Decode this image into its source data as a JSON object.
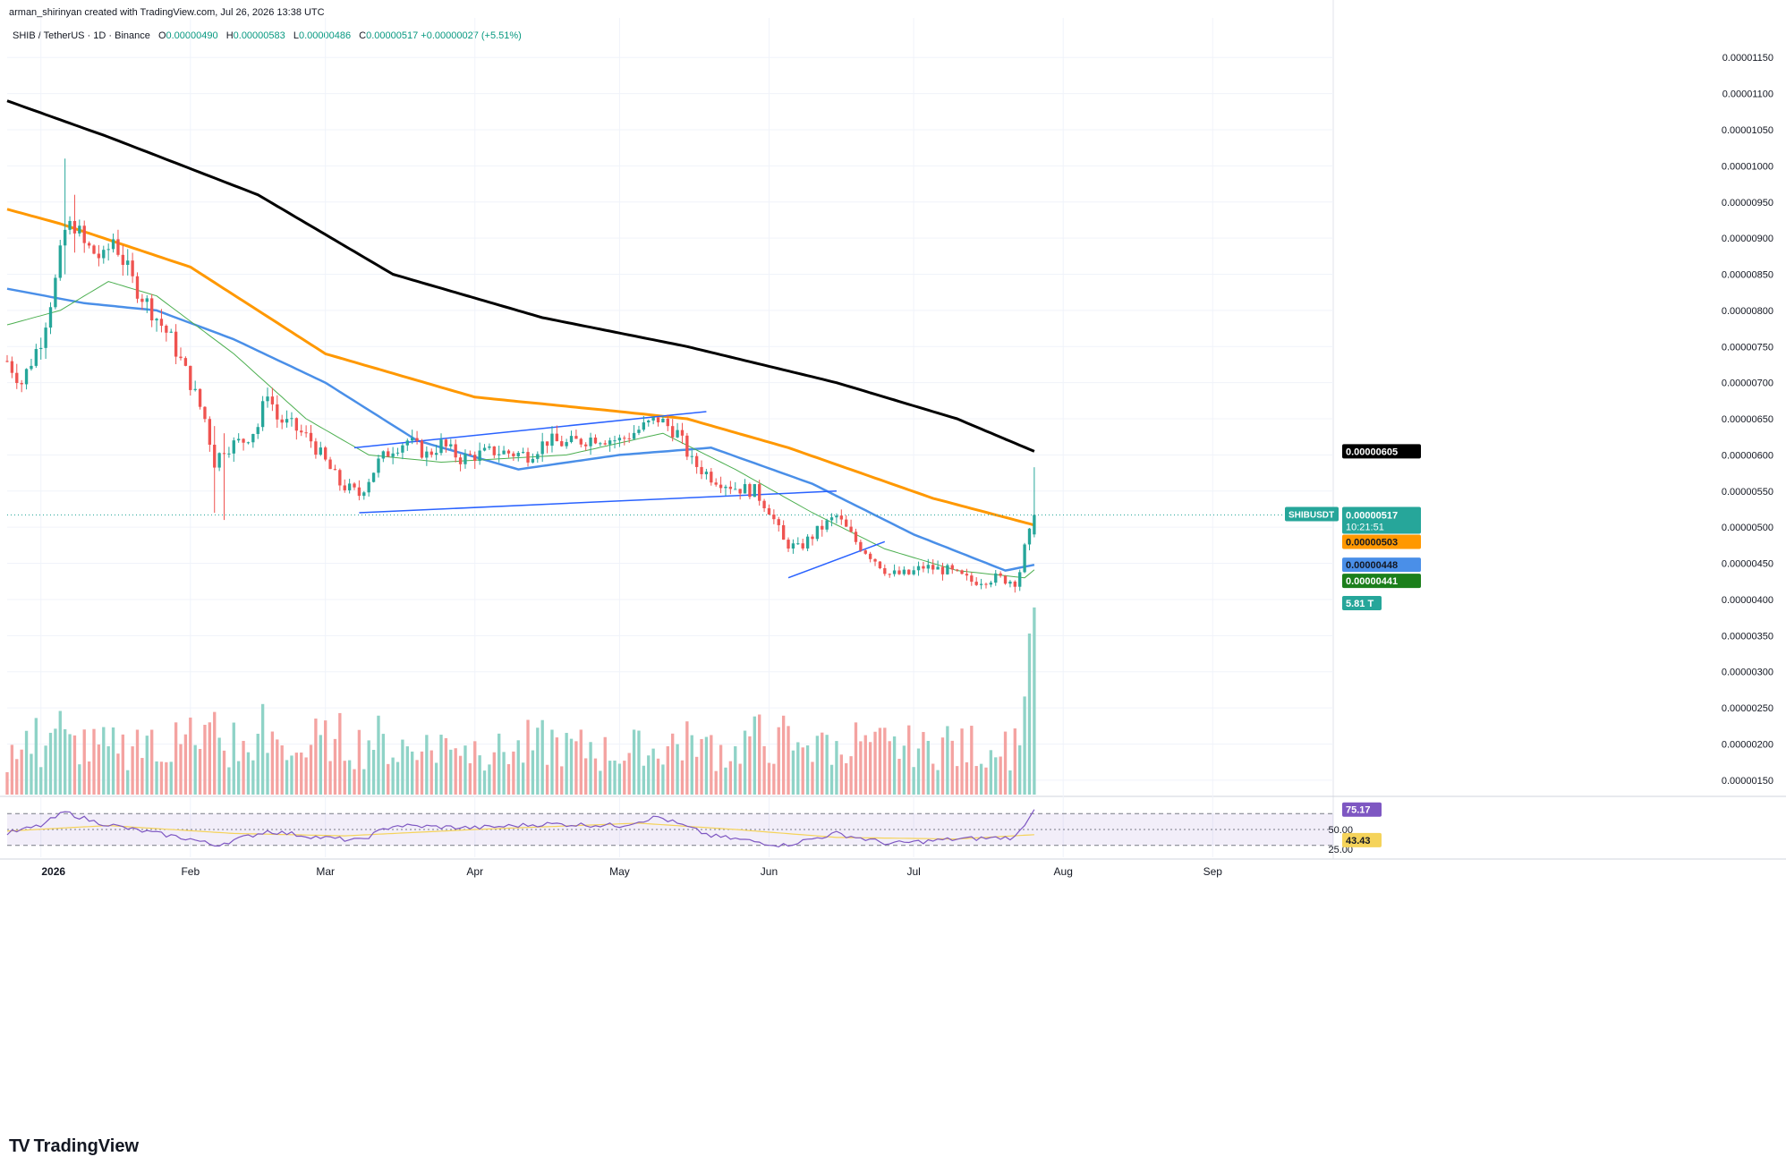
{
  "header": {
    "credit": "arman_shirinyan created with TradingView.com, Jul 26, 2026 13:38 UTC",
    "symbol": "SHIB / TetherUS · 1D · Binance",
    "ohlc": {
      "o_label": "O",
      "o": "0.00000490",
      "h_label": "H",
      "h": "0.00000583",
      "l_label": "L",
      "l": "0.00000486",
      "c_label": "C",
      "c": "0.00000517",
      "change": "+0.00000027 (+5.51%)"
    }
  },
  "branding": {
    "logo_text": "TradingView",
    "logo_mark": "TV"
  },
  "colors": {
    "up": "#26a69a",
    "down": "#ef5350",
    "vol_up": "#8fd3c7",
    "vol_down": "#f4a3a1",
    "ma200": "#000000",
    "ma100": "#ff9800",
    "ma50": "#4a8fe8",
    "ma20": "#4caf50",
    "rsi": "#7e57c2",
    "rsi_ma": "#f5d35a",
    "trend": "#2962ff"
  },
  "chart_data": {
    "type": "candlestick",
    "symbol_label": "SHIBUSDT",
    "y_axis": {
      "ticks": [
        1.15e-05,
        1.1e-05,
        1.05e-05,
        1e-05,
        9.5e-06,
        9e-06,
        8.5e-06,
        8e-06,
        7.5e-06,
        7e-06,
        6.5e-06,
        6e-06,
        5.5e-06,
        5e-06,
        4.5e-06,
        4e-06,
        3.5e-06,
        3e-06,
        2.5e-06,
        2e-06,
        1.5e-06
      ],
      "tick_labels": [
        "0.00001150",
        "0.00001100",
        "0.00001050",
        "0.00001000",
        "0.00000950",
        "0.00000900",
        "0.00000850",
        "0.00000800",
        "0.00000750",
        "0.00000700",
        "0.00000650",
        "0.00000600",
        "0.00000550",
        "0.00000500",
        "0.00000450",
        "0.00000400",
        "0.00000350",
        "0.00000300",
        "0.00000250",
        "0.00000200",
        "0.00000150"
      ],
      "range": [
        1.3e-06,
        1.18e-05
      ]
    },
    "x_axis": {
      "labels": [
        {
          "label": "2026",
          "date": "2026-01-01"
        },
        {
          "label": "Feb",
          "date": "2026-02-01"
        },
        {
          "label": "Mar",
          "date": "2026-03-01"
        },
        {
          "label": "Apr",
          "date": "2026-04-01"
        },
        {
          "label": "May",
          "date": "2026-05-01"
        },
        {
          "label": "Jun",
          "date": "2026-06-01"
        },
        {
          "label": "Jul",
          "date": "2026-07-01"
        },
        {
          "label": "Aug",
          "date": "2026-08-01"
        },
        {
          "label": "Sep",
          "date": "2026-09-01"
        }
      ],
      "range": [
        "2025-12-25",
        "2026-09-26"
      ]
    },
    "price_anchors": [
      [
        "2025-12-25",
        7.3e-06
      ],
      [
        "2025-12-28",
        7e-06
      ],
      [
        "2026-01-01",
        7.6e-06
      ],
      [
        "2026-01-04",
        8.4e-06
      ],
      [
        "2026-01-06",
        9.1e-06
      ],
      [
        "2026-01-08",
        9.2e-06
      ],
      [
        "2026-01-10",
        8.9e-06
      ],
      [
        "2026-01-14",
        8.7e-06
      ],
      [
        "2026-01-16",
        9e-06
      ],
      [
        "2026-01-20",
        8.4e-06
      ],
      [
        "2026-01-24",
        8e-06
      ],
      [
        "2026-01-28",
        7.6e-06
      ],
      [
        "2026-02-01",
        7e-06
      ],
      [
        "2026-02-04",
        6.5e-06
      ],
      [
        "2026-02-06",
        5.9e-06
      ],
      [
        "2026-02-08",
        6.1e-06
      ],
      [
        "2026-02-12",
        6.2e-06
      ],
      [
        "2026-02-15",
        6.4e-06
      ],
      [
        "2026-02-17",
        6.9e-06
      ],
      [
        "2026-02-19",
        6.5e-06
      ],
      [
        "2026-02-22",
        6.4e-06
      ],
      [
        "2026-02-26",
        6.2e-06
      ],
      [
        "2026-03-01",
        5.9e-06
      ],
      [
        "2026-03-04",
        5.6e-06
      ],
      [
        "2026-03-08",
        5.45e-06
      ],
      [
        "2026-03-12",
        5.9e-06
      ],
      [
        "2026-03-15",
        6.1e-06
      ],
      [
        "2026-03-18",
        6.2e-06
      ],
      [
        "2026-03-22",
        6e-06
      ],
      [
        "2026-03-25",
        6.15e-06
      ],
      [
        "2026-03-29",
        5.95e-06
      ],
      [
        "2026-04-05",
        6.05e-06
      ],
      [
        "2026-04-12",
        6e-06
      ],
      [
        "2026-04-16",
        6.2e-06
      ],
      [
        "2026-04-20",
        6.15e-06
      ],
      [
        "2026-04-26",
        6.25e-06
      ],
      [
        "2026-05-01",
        6.2e-06
      ],
      [
        "2026-05-05",
        6.35e-06
      ],
      [
        "2026-05-09",
        6.5e-06
      ],
      [
        "2026-05-13",
        6.3e-06
      ],
      [
        "2026-05-16",
        5.9e-06
      ],
      [
        "2026-05-20",
        5.7e-06
      ],
      [
        "2026-05-25",
        5.55e-06
      ],
      [
        "2026-05-29",
        5.5e-06
      ],
      [
        "2026-06-01",
        5.25e-06
      ],
      [
        "2026-06-04",
        4.8e-06
      ],
      [
        "2026-06-07",
        4.7e-06
      ],
      [
        "2026-06-12",
        5e-06
      ],
      [
        "2026-06-15",
        5.15e-06
      ],
      [
        "2026-06-19",
        4.8e-06
      ],
      [
        "2026-06-23",
        4.55e-06
      ],
      [
        "2026-06-26",
        4.35e-06
      ],
      [
        "2026-06-30",
        4.35e-06
      ],
      [
        "2026-07-03",
        4.45e-06
      ],
      [
        "2026-07-08",
        4.4e-06
      ],
      [
        "2026-07-13",
        4.25e-06
      ],
      [
        "2026-07-18",
        4.3e-06
      ],
      [
        "2026-07-22",
        4.25e-06
      ],
      [
        "2026-07-23",
        4.4e-06
      ],
      [
        "2026-07-24",
        4.7e-06
      ],
      [
        "2026-07-25",
        4.9e-06
      ],
      [
        "2026-07-26",
        5.17e-06
      ]
    ],
    "last_candle": {
      "date": "2026-07-26",
      "o": 4.9e-06,
      "h": 5.83e-06,
      "l": 4.86e-06,
      "c": 5.17e-06
    },
    "spikes": [
      {
        "date": "2026-01-06",
        "h": 1.01e-05,
        "l": 8.5e-06
      },
      {
        "date": "2026-01-08",
        "h": 9.6e-06,
        "l": 8.8e-06
      },
      {
        "date": "2026-02-06",
        "h": 6.4e-06,
        "l": 5.2e-06
      },
      {
        "date": "2026-02-08",
        "h": 6.3e-06,
        "l": 5.1e-06
      }
    ],
    "moving_averages": [
      {
        "key": "ma200",
        "label": "0.00000605",
        "anchors": [
          [
            "2025-12-25",
            1.09e-05
          ],
          [
            "2026-01-15",
            1.04e-05
          ],
          [
            "2026-02-15",
            9.6e-06
          ],
          [
            "2026-03-15",
            8.5e-06
          ],
          [
            "2026-04-15",
            7.9e-06
          ],
          [
            "2026-05-15",
            7.5e-06
          ],
          [
            "2026-06-15",
            7e-06
          ],
          [
            "2026-07-10",
            6.5e-06
          ],
          [
            "2026-07-26",
            6.05e-06
          ]
        ]
      },
      {
        "key": "ma100",
        "label": "0.00000503",
        "anchors": [
          [
            "2025-12-25",
            9.4e-06
          ],
          [
            "2026-01-05",
            9.2e-06
          ],
          [
            "2026-02-01",
            8.6e-06
          ],
          [
            "2026-03-01",
            7.4e-06
          ],
          [
            "2026-04-01",
            6.8e-06
          ],
          [
            "2026-05-01",
            6.6e-06
          ],
          [
            "2026-05-15",
            6.5e-06
          ],
          [
            "2026-06-05",
            6.1e-06
          ],
          [
            "2026-07-05",
            5.4e-06
          ],
          [
            "2026-07-26",
            5.03e-06
          ]
        ]
      },
      {
        "key": "ma50",
        "label": "0.00000448",
        "anchors": [
          [
            "2025-12-25",
            8.3e-06
          ],
          [
            "2026-01-10",
            8.1e-06
          ],
          [
            "2026-01-25",
            8e-06
          ],
          [
            "2026-02-10",
            7.6e-06
          ],
          [
            "2026-03-01",
            7e-06
          ],
          [
            "2026-03-20",
            6.2e-06
          ],
          [
            "2026-04-10",
            5.8e-06
          ],
          [
            "2026-05-01",
            6e-06
          ],
          [
            "2026-05-20",
            6.1e-06
          ],
          [
            "2026-06-10",
            5.6e-06
          ],
          [
            "2026-07-01",
            4.9e-06
          ],
          [
            "2026-07-20",
            4.4e-06
          ],
          [
            "2026-07-26",
            4.48e-06
          ]
        ]
      },
      {
        "key": "ma20",
        "label": "0.00000441",
        "anchors": [
          [
            "2025-12-25",
            7.8e-06
          ],
          [
            "2026-01-05",
            8e-06
          ],
          [
            "2026-01-15",
            8.4e-06
          ],
          [
            "2026-01-25",
            8.2e-06
          ],
          [
            "2026-02-10",
            7.4e-06
          ],
          [
            "2026-02-25",
            6.5e-06
          ],
          [
            "2026-03-10",
            6e-06
          ],
          [
            "2026-03-25",
            5.9e-06
          ],
          [
            "2026-04-20",
            6e-06
          ],
          [
            "2026-05-10",
            6.3e-06
          ],
          [
            "2026-05-25",
            5.8e-06
          ],
          [
            "2026-06-10",
            5.2e-06
          ],
          [
            "2026-06-25",
            4.7e-06
          ],
          [
            "2026-07-10",
            4.4e-06
          ],
          [
            "2026-07-24",
            4.3e-06
          ],
          [
            "2026-07-26",
            4.41e-06
          ]
        ]
      }
    ],
    "trendlines": [
      {
        "from": [
          "2026-03-07",
          6.1e-06
        ],
        "to": [
          "2026-05-19",
          6.6e-06
        ]
      },
      {
        "from": [
          "2026-03-08",
          5.2e-06
        ],
        "to": [
          "2026-06-15",
          5.5e-06
        ]
      },
      {
        "from": [
          "2026-06-05",
          4.3e-06
        ],
        "to": [
          "2026-06-25",
          4.8e-06
        ]
      }
    ],
    "price_labels": [
      {
        "key": "ma200",
        "text": "0.00000605",
        "value": 6.05e-06,
        "bg": "#000000",
        "fg": "#ffffff"
      },
      {
        "key": "last",
        "text": "0.00000517",
        "value": 5.17e-06,
        "bg": "#26a69a",
        "fg": "#ffffff",
        "countdown": "10:21:51",
        "symbol": "SHIBUSDT"
      },
      {
        "key": "ma100",
        "text": "0.00000503",
        "value": 5.03e-06,
        "bg": "#ff9800",
        "fg": "#131722"
      },
      {
        "key": "ma50",
        "text": "0.00000448",
        "value": 4.48e-06,
        "bg": "#4a8fe8",
        "fg": "#131722"
      },
      {
        "key": "ma20",
        "text": "0.00000441",
        "value": 4.41e-06,
        "bg": "#1b7f1b",
        "fg": "#ffffff"
      }
    ],
    "volume": {
      "last_label": "5.81 T",
      "last_value": 5.81,
      "unit": "T",
      "max_value": 6.0
    },
    "rsi": {
      "range": [
        15,
        85
      ],
      "levels": [
        70,
        50,
        30
      ],
      "level_labels": [
        {
          "value": 50,
          "text": "50.00"
        },
        {
          "value": 25,
          "text": "25.00"
        }
      ],
      "current": {
        "value": 75.17,
        "text": "75.17"
      },
      "ma": {
        "value": 43.43,
        "text": "43.43"
      },
      "anchors": [
        [
          "2025-12-25",
          45
        ],
        [
          "2026-01-01",
          55
        ],
        [
          "2026-01-06",
          72
        ],
        [
          "2026-01-12",
          60
        ],
        [
          "2026-01-20",
          50
        ],
        [
          "2026-02-01",
          38
        ],
        [
          "2026-02-06",
          30
        ],
        [
          "2026-02-17",
          48
        ],
        [
          "2026-02-28",
          40
        ],
        [
          "2026-03-08",
          36
        ],
        [
          "2026-03-15",
          55
        ],
        [
          "2026-04-01",
          52
        ],
        [
          "2026-04-16",
          57
        ],
        [
          "2026-05-01",
          55
        ],
        [
          "2026-05-09",
          66
        ],
        [
          "2026-05-20",
          42
        ],
        [
          "2026-06-04",
          30
        ],
        [
          "2026-06-15",
          45
        ],
        [
          "2026-06-26",
          32
        ],
        [
          "2026-07-10",
          38
        ],
        [
          "2026-07-22",
          40
        ],
        [
          "2026-07-24",
          55
        ],
        [
          "2026-07-26",
          75.17
        ]
      ],
      "ma_anchors": [
        [
          "2025-12-25",
          48
        ],
        [
          "2026-01-15",
          55
        ],
        [
          "2026-02-10",
          45
        ],
        [
          "2026-03-05",
          42
        ],
        [
          "2026-04-01",
          50
        ],
        [
          "2026-05-05",
          58
        ],
        [
          "2026-05-25",
          50
        ],
        [
          "2026-06-15",
          40
        ],
        [
          "2026-07-10",
          38
        ],
        [
          "2026-07-26",
          43.43
        ]
      ]
    }
  }
}
